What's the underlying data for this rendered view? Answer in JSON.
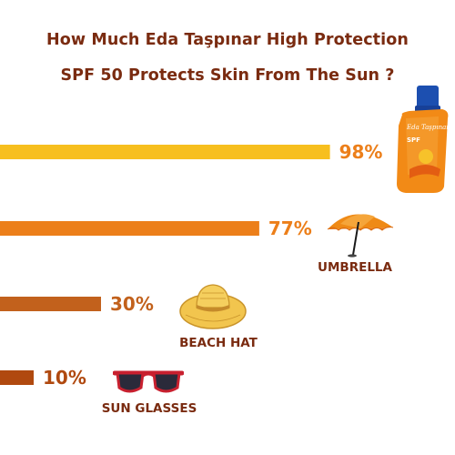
{
  "chart_data": {
    "type": "bar",
    "title": "How Much Eda Taşpınar High Protection",
    "subtitle": "SPF 50 Protects Skin From The Sun ?",
    "xlabel": "",
    "ylabel": "",
    "xlim": [
      0,
      100
    ],
    "orientation": "horizontal",
    "categories": [
      "",
      "UMBRELLA",
      "BEACH HAT",
      "SUN GLASSES"
    ],
    "values": [
      98,
      77,
      30,
      10
    ],
    "value_labels": [
      "98%",
      "77%",
      "30%",
      "10%"
    ],
    "bar_colors": [
      "#f7bf1e",
      "#ec7f1a",
      "#c2611c",
      "#b0490f"
    ],
    "label_colors": [
      "#ec7f1a",
      "#ec7f1a",
      "#c2611c",
      "#b0490f"
    ],
    "grid": false,
    "legend": "none"
  },
  "icons": {
    "row1": "sunscreen-bottle-icon",
    "row2": "beach-umbrella-icon",
    "row3": "straw-hat-icon",
    "row4": "sunglasses-icon"
  },
  "bottle_text": {
    "brand": "Eda Taşpınar",
    "spf": "SPF"
  }
}
